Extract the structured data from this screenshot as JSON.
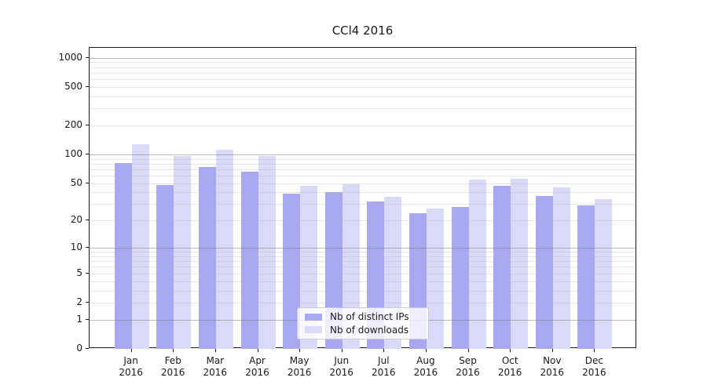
{
  "chart_data": {
    "type": "bar",
    "title": "CCl4 2016",
    "categories": [
      "Jan",
      "Feb",
      "Mar",
      "Apr",
      "May",
      "Jun",
      "Jul",
      "Aug",
      "Sep",
      "Oct",
      "Nov",
      "Dec"
    ],
    "year_label": "2016",
    "series": [
      {
        "name": "Nb of distinct IPs",
        "color": "#a8a8f2",
        "values": [
          81,
          48,
          74,
          66,
          39,
          40,
          32,
          24,
          28,
          47,
          37,
          29
        ]
      },
      {
        "name": "Nb of downloads",
        "color": "#d9d9f8",
        "values": [
          127,
          96,
          112,
          97,
          47,
          49,
          36,
          27,
          55,
          56,
          45,
          34
        ]
      }
    ],
    "xlabel": "",
    "ylabel": "",
    "yscale": "symlog",
    "ylim": [
      0,
      1265
    ],
    "yticks": [
      0,
      1,
      2,
      5,
      10,
      20,
      50,
      100,
      200,
      500,
      1000
    ],
    "grid": {
      "on": true,
      "major_values": [
        1,
        10,
        100,
        1000
      ],
      "minor_values": [
        2,
        3,
        4,
        5,
        6,
        7,
        8,
        9,
        20,
        30,
        40,
        50,
        60,
        70,
        80,
        90,
        200,
        300,
        400,
        500,
        600,
        700,
        800,
        900
      ]
    },
    "legend_position": "lower-center"
  }
}
